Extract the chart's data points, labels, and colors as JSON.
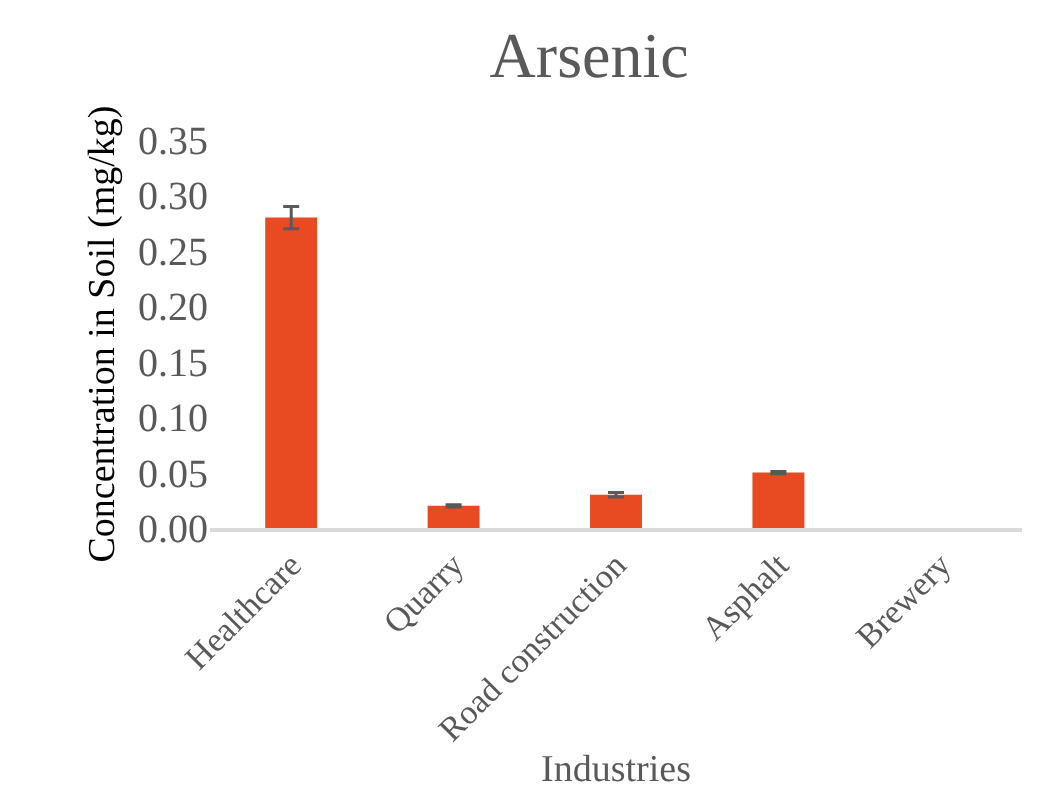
{
  "chart_data": {
    "type": "bar",
    "title": "Arsenic",
    "xlabel": "Industries",
    "ylabel": "Concentration in Soil (mg/kg)",
    "categories": [
      "Healthcare",
      "Quarry",
      "Road construction",
      "Asphalt",
      "Brewery"
    ],
    "values": [
      0.28,
      0.02,
      0.03,
      0.05,
      null
    ],
    "errors": [
      0.01,
      0.001,
      0.002,
      0.001,
      null
    ],
    "color": "#e84a22",
    "ylim": [
      0,
      0.35
    ],
    "yticks": [
      {
        "value": 0,
        "label": "0.00"
      },
      {
        "value": 0.05,
        "label": "0.05"
      },
      {
        "value": 0.1,
        "label": "0.10"
      },
      {
        "value": 0.15,
        "label": "0.15"
      },
      {
        "value": 0.2,
        "label": "0.20"
      },
      {
        "value": 0.25,
        "label": "0.25"
      },
      {
        "value": 0.3,
        "label": "0.30"
      },
      {
        "value": 0.35,
        "label": "0.35"
      }
    ],
    "grid": false
  }
}
